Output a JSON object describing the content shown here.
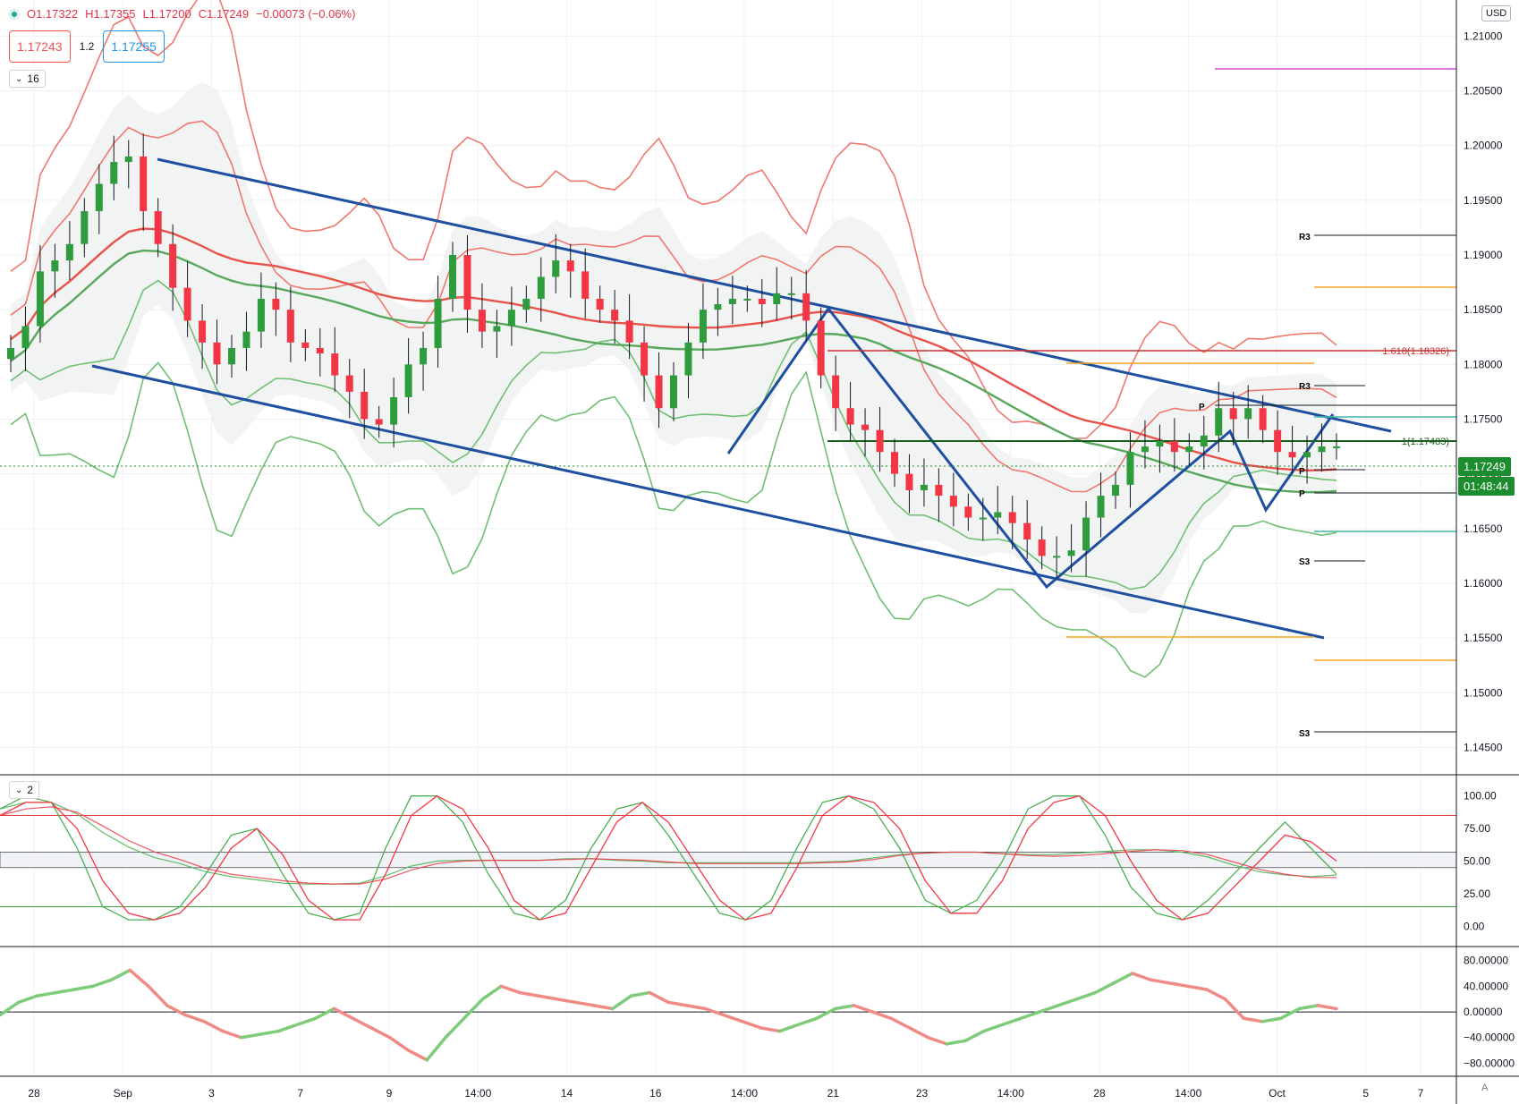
{
  "header": {
    "open_label": "O1.17322",
    "high_label": "H1.17355",
    "low_label": "L1.17200",
    "close_label": "C1.17249",
    "change_label": "−0.00073 (−0.06%)"
  },
  "quote": {
    "sell_price": "1.17243",
    "spread": "1.2",
    "buy_price": "1.17255"
  },
  "panes": {
    "main_badge": "16",
    "osc_badge": "2"
  },
  "axis": {
    "currency": "USD",
    "last_price": "1.17249",
    "countdown": "01:48:44",
    "corner_button": "A"
  },
  "colors": {
    "up": "#2e9c3c",
    "down": "#f23645",
    "channel": "#1e4fa0",
    "bb_red": "#f0776e",
    "bb_green": "#6fbf73",
    "orange": "#f5a623",
    "magenta": "#d14fd6"
  },
  "chart_data": [
    {
      "type": "candlestick",
      "symbol_unit": "USD",
      "y_ticks": [
        "1.21000",
        "1.20500",
        "1.20000",
        "1.19500",
        "1.19000",
        "1.18500",
        "1.18000",
        "1.17500",
        "1.17000",
        "1.16500",
        "1.16000",
        "1.15500",
        "1.15000",
        "1.14500"
      ],
      "ylim": [
        1.1425,
        1.2133
      ],
      "x_ticks": [
        "28",
        "Sep",
        "3",
        "7",
        "9",
        "14:00",
        "14",
        "16",
        "14:00",
        "21",
        "23",
        "14:00",
        "28",
        "14:00",
        "Oct",
        "5",
        "7"
      ],
      "price_path": [
        1.1815,
        1.1835,
        1.1885,
        1.1895,
        1.191,
        1.194,
        1.1965,
        1.1985,
        1.199,
        1.194,
        1.191,
        1.187,
        1.184,
        1.182,
        1.18,
        1.1815,
        1.183,
        1.186,
        1.185,
        1.182,
        1.1815,
        1.181,
        1.179,
        1.1775,
        1.175,
        1.1745,
        1.177,
        1.18,
        1.1815,
        1.186,
        1.19,
        1.185,
        1.183,
        1.1835,
        1.185,
        1.186,
        1.188,
        1.1895,
        1.1885,
        1.186,
        1.185,
        1.184,
        1.182,
        1.179,
        1.176,
        1.179,
        1.182,
        1.185,
        1.1855,
        1.186,
        1.186,
        1.1855,
        1.1865,
        1.1865,
        1.184,
        1.179,
        1.176,
        1.1745,
        1.174,
        1.172,
        1.17,
        1.1685,
        1.169,
        1.168,
        1.167,
        1.166,
        1.166,
        1.1665,
        1.1655,
        1.164,
        1.1625,
        1.1625,
        1.163,
        1.166,
        1.168,
        1.169,
        1.172,
        1.1725,
        1.173,
        1.172,
        1.1725,
        1.1735,
        1.176,
        1.175,
        1.176,
        1.174,
        1.172,
        1.1715,
        1.172,
        1.1725,
        1.1725
      ],
      "annotations": {
        "fib_levels": [
          {
            "label": "1.618(1.18326)",
            "value": 1.18326
          },
          {
            "label": "1(1.17483)",
            "value": 1.17483
          }
        ],
        "pivot_labels": [
          "R3",
          "R3",
          "P",
          "P",
          "P",
          "S3",
          "S3"
        ],
        "channel_upper": {
          "from": [
            1.201,
            "Sep 1"
          ],
          "to": [
            1.176,
            "Oct 5"
          ]
        },
        "channel_lower": {
          "from": [
            1.1818,
            "Aug 29"
          ],
          "to": [
            1.1565,
            "Oct 5"
          ]
        }
      }
    },
    {
      "type": "line",
      "title": "",
      "y_ticks": [
        "100.00",
        "75.00",
        "50.00",
        "25.00",
        "0.00"
      ],
      "ylim": [
        -10,
        108
      ],
      "levels": [
        85,
        15
      ],
      "series": [
        {
          "color": "#4caf50",
          "values": [
            90,
            100,
            95,
            60,
            15,
            5,
            5,
            15,
            40,
            70,
            75,
            40,
            10,
            5,
            10,
            60,
            100,
            100,
            80,
            40,
            10,
            5,
            20,
            60,
            90,
            95,
            70,
            40,
            10,
            5,
            20,
            60,
            95,
            100,
            90,
            60,
            20,
            10,
            20,
            50,
            90,
            100,
            100,
            70,
            30,
            10,
            5,
            20,
            40,
            60,
            80,
            60,
            40
          ]
        },
        {
          "color": "#f23645",
          "values": [
            85,
            95,
            95,
            75,
            35,
            10,
            5,
            10,
            30,
            60,
            75,
            55,
            20,
            5,
            5,
            40,
            85,
            100,
            90,
            60,
            20,
            5,
            10,
            45,
            80,
            95,
            80,
            50,
            20,
            5,
            10,
            45,
            85,
            100,
            95,
            75,
            35,
            10,
            10,
            35,
            75,
            95,
            100,
            85,
            50,
            20,
            5,
            10,
            30,
            50,
            70,
            65,
            50
          ]
        }
      ]
    },
    {
      "type": "line",
      "title": "",
      "y_ticks": [
        "80.00000",
        "40.00000",
        "0.00000",
        "−40.00000",
        "−80.00000"
      ],
      "ylim": [
        -92,
        88
      ],
      "series": [
        {
          "values": [
            -5,
            15,
            25,
            30,
            35,
            40,
            50,
            65,
            40,
            10,
            -5,
            -15,
            -30,
            -40,
            -35,
            -30,
            -20,
            -10,
            5,
            -10,
            -25,
            -40,
            -60,
            -75,
            -40,
            -10,
            20,
            40,
            30,
            25,
            20,
            15,
            10,
            5,
            25,
            30,
            15,
            10,
            5,
            -5,
            -15,
            -25,
            -30,
            -20,
            -10,
            5,
            10,
            0,
            -10,
            -25,
            -40,
            -50,
            -45,
            -30,
            -20,
            -10,
            0,
            10,
            20,
            30,
            45,
            60,
            50,
            45,
            40,
            35,
            20,
            -10,
            -15,
            -10,
            5,
            10,
            5
          ]
        }
      ]
    }
  ]
}
